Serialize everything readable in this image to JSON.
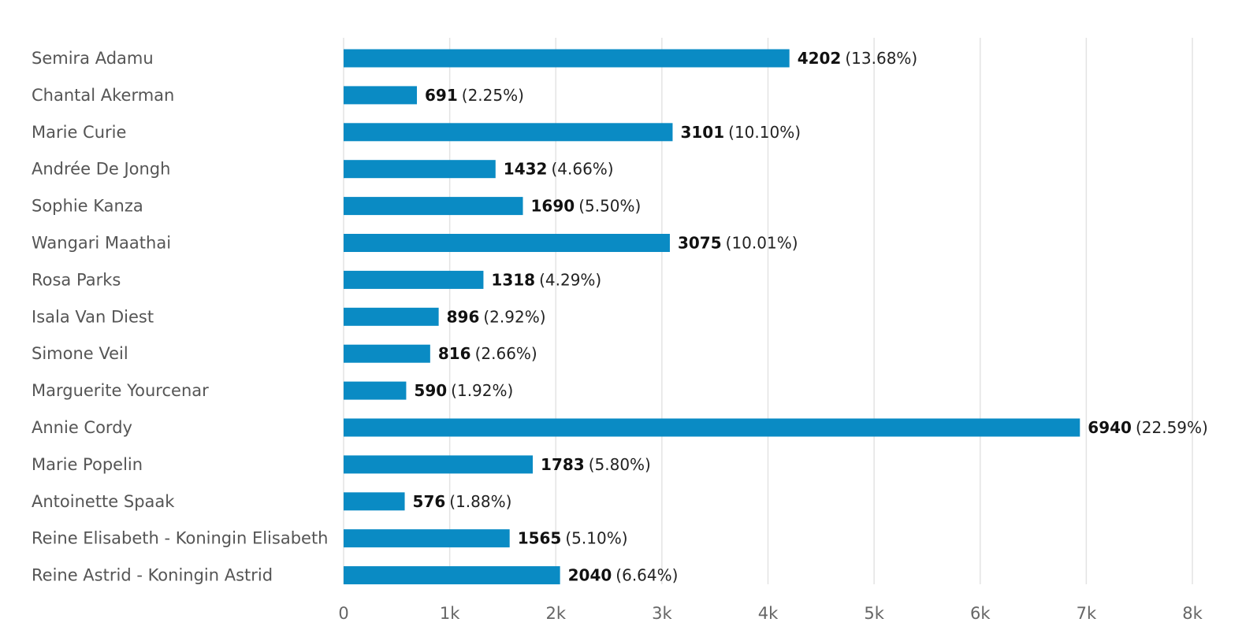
{
  "chart_data": {
    "type": "bar",
    "orientation": "horizontal",
    "categories": [
      "Semira Adamu",
      "Chantal Akerman",
      "Marie Curie",
      "Andrée De Jongh",
      "Sophie Kanza",
      "Wangari Maathai",
      "Rosa Parks",
      "Isala Van Diest",
      "Simone Veil",
      "Marguerite Yourcenar",
      "Annie Cordy",
      "Marie Popelin",
      "Antoinette Spaak",
      "Reine Elisabeth - Koningin Elisabeth",
      "Reine Astrid - Koningin Astrid"
    ],
    "values": [
      4202,
      691,
      3101,
      1432,
      1690,
      3075,
      1318,
      896,
      816,
      590,
      6940,
      1783,
      576,
      1565,
      2040
    ],
    "percent_labels": [
      "(13.68%)",
      "(2.25%)",
      "(10.10%)",
      "(4.66%)",
      "(5.50%)",
      "(10.01%)",
      "(4.29%)",
      "(2.92%)",
      "(2.66%)",
      "(1.92%)",
      "(22.59%)",
      "(5.80%)",
      "(1.88%)",
      "(5.10%)",
      "(6.64%)"
    ],
    "xlim": [
      0,
      8000
    ],
    "x_ticks": [
      0,
      1000,
      2000,
      3000,
      4000,
      5000,
      6000,
      7000,
      8000
    ],
    "x_tick_labels": [
      "0",
      "1k",
      "2k",
      "3k",
      "4k",
      "5k",
      "6k",
      "7k",
      "8k"
    ],
    "title": "",
    "xlabel": "",
    "ylabel": "",
    "grid": "vertical",
    "legend": "none",
    "bar_color": "#0a8bc4",
    "grid_color": "#e3e3e3"
  }
}
